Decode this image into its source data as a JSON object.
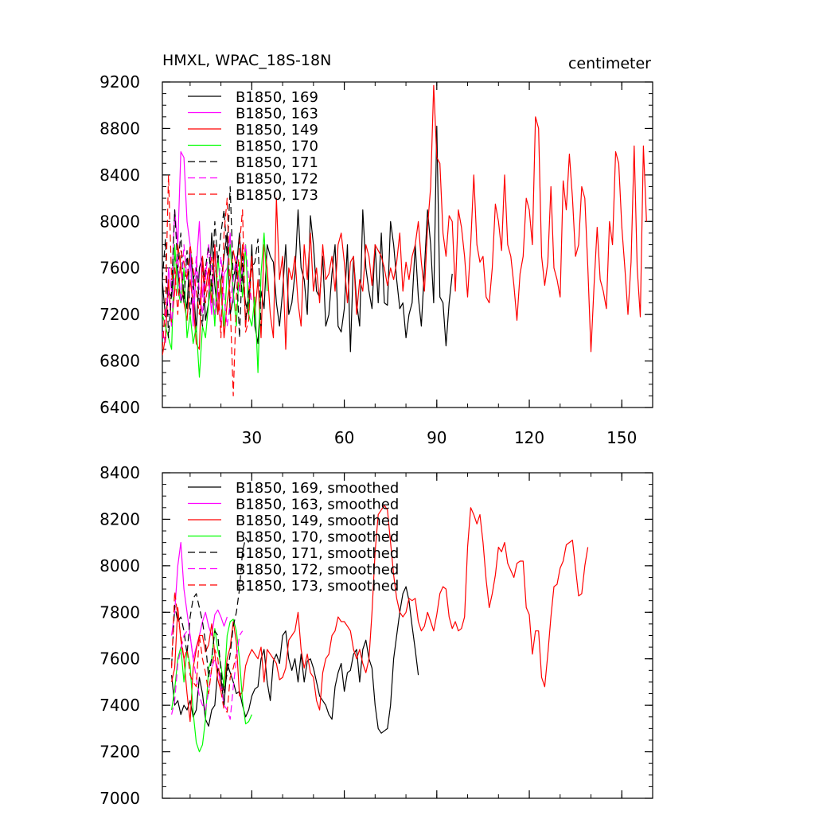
{
  "chart_data": [
    {
      "type": "line",
      "title": "HMXL, WPAC_18S-18N",
      "units": "centimeter",
      "xlim": [
        1,
        160
      ],
      "ylim": [
        6400,
        9200
      ],
      "x_ticks": [
        30,
        60,
        90,
        120,
        150
      ],
      "y_ticks": [
        6400,
        6800,
        7200,
        7600,
        8000,
        8400,
        8800,
        9200
      ],
      "x_tick_labels": [
        "30",
        "60",
        "90",
        "120",
        "150"
      ],
      "y_tick_labels": [
        "6400",
        "6800",
        "7200",
        "7600",
        "8000",
        "8400",
        "8800",
        "9200"
      ],
      "grid": false,
      "legend_position": "top-left",
      "series": [
        {
          "name": "B1850, 169",
          "color": "#000000",
          "dash": "solid",
          "x_start": 1,
          "values": [
            7480,
            7180,
            7400,
            7350,
            7700,
            7580,
            7300,
            7400,
            7250,
            7780,
            7500,
            7050,
            7600,
            7700,
            7150,
            7300,
            7900,
            7450,
            7200,
            7480,
            7700,
            7900,
            7200,
            7350,
            7600,
            7900,
            7500,
            7300,
            7200,
            7800,
            7100,
            6950,
            7400,
            7250,
            7800,
            7700,
            7650,
            7300,
            7100,
            7400,
            7800,
            7200,
            7300,
            7550,
            8100,
            7600,
            7500,
            7200,
            8050,
            7800,
            7400,
            7350,
            7700,
            7100,
            7200,
            7550,
            7800,
            7100,
            7050,
            7250,
            7800,
            6880,
            7700,
            7300,
            7100,
            8100,
            7600,
            7400,
            7250,
            7800,
            7300,
            7900,
            7300,
            7280,
            8000,
            7800,
            7500,
            7250,
            7300,
            7000,
            7200,
            7300,
            7800,
            7350,
            7100,
            7600,
            8100,
            7800,
            7300,
            8820,
            7350,
            7300,
            6930,
            7300,
            7550
          ]
        },
        {
          "name": "B1850, 163",
          "color": "#ff00ff",
          "dash": "solid",
          "x_start": 1,
          "values": [
            7050,
            6960,
            7600,
            7400,
            8100,
            7800,
            8600,
            8550,
            8000,
            7800,
            7100,
            7600,
            8000,
            7350,
            7600,
            7500,
            7200,
            7800,
            7400,
            7100,
            7550,
            7600,
            7900,
            7300
          ]
        },
        {
          "name": "B1850, 149",
          "color": "#ff0000",
          "dash": "solid",
          "x_start": 1,
          "values": [
            6850,
            7000,
            7500,
            7100,
            7400,
            7800,
            7600,
            7300,
            7150,
            7500,
            7300,
            6950,
            6900,
            7700,
            7400,
            7600,
            7300,
            7800,
            7200,
            7500,
            7000,
            7300,
            7500,
            7750,
            7600,
            7400,
            7800,
            7100,
            7400,
            7700,
            7200,
            7500,
            7000,
            7800,
            7600,
            7200,
            7000,
            8200,
            7500,
            7700,
            6900,
            7600,
            7500,
            7700,
            7300,
            7100,
            7800,
            7500,
            7900,
            7400,
            7600,
            7300,
            7800,
            7500,
            7550,
            7700,
            7400,
            7800,
            7900,
            7650,
            7300,
            7650,
            7700,
            7200,
            7500,
            7400,
            7800,
            7700,
            7450,
            7800,
            7750,
            7700,
            7600,
            7450,
            7600,
            7500,
            7650,
            7900,
            7400,
            7650,
            7500,
            7700,
            7800,
            8000,
            7650,
            7400,
            7950,
            8300,
            9170,
            8550,
            8500,
            7900,
            7700,
            8050,
            8000,
            7400,
            8100,
            7950,
            7700,
            7350,
            7800,
            8400,
            7800,
            7650,
            7700,
            7350,
            7300,
            7600,
            8150,
            8000,
            7750,
            8400,
            7800,
            7700,
            7450,
            7150,
            7550,
            7700,
            8200,
            8100,
            7800,
            8900,
            8800,
            7700,
            7450,
            7650,
            8300,
            7600,
            7500,
            7350,
            8350,
            8100,
            8580,
            8200,
            7700,
            7800,
            8300,
            8200,
            7600,
            6880,
            7450,
            7950,
            7500,
            7400,
            7250,
            8000,
            7800,
            8600,
            8500,
            7950,
            7600,
            7200,
            7650,
            8650,
            7600,
            7180,
            8650,
            8000
          ]
        },
        {
          "name": "B1850, 170",
          "color": "#00ff00",
          "dash": "solid",
          "x_start": 1,
          "values": [
            7200,
            7100,
            7000,
            6900,
            7800,
            7400,
            7300,
            7600,
            7000,
            7200,
            6950,
            7100,
            6660,
            7100,
            7000,
            7300,
            7500,
            7100,
            7700,
            7400,
            7100,
            7550,
            7800,
            7400,
            7100,
            7650,
            7350,
            7800,
            7200,
            7100,
            7350,
            6700,
            7550,
            7900,
            7400
          ]
        },
        {
          "name": "B1850, 171",
          "color": "#000000",
          "dash": "dashed",
          "x_start": 1,
          "values": [
            7500,
            7850,
            7000,
            7400,
            8100,
            7600,
            7900,
            7300,
            7750,
            7200,
            7500,
            7600,
            7300,
            7100,
            7600,
            7800,
            7400,
            8000,
            7650,
            7900,
            8100,
            7700,
            8300,
            7500,
            7650,
            7000,
            7700,
            7150,
            7400,
            7600,
            7650,
            7850,
            7100
          ]
        },
        {
          "name": "B1850, 172",
          "color": "#ff00ff",
          "dash": "dashed",
          "x_start": 1,
          "values": [
            7000,
            7200,
            7400,
            7100,
            7600,
            7700,
            7300,
            7800,
            7500,
            7650,
            7300,
            7700,
            7400,
            7200,
            7500,
            7800,
            7600,
            7200,
            7400,
            7700,
            7350,
            7100,
            7300,
            7500,
            7700,
            7400,
            7600,
            7800,
            7500,
            7300
          ]
        },
        {
          "name": "B1850, 173",
          "color": "#ff0000",
          "dash": "dashed",
          "x_start": 1,
          "values": [
            6900,
            7300,
            8400,
            7500,
            7600,
            7200,
            7750,
            7650,
            7500,
            7800,
            7600,
            7400,
            7200,
            7600,
            7300,
            7500,
            7700,
            7600,
            7500,
            7000,
            7900,
            8200,
            7300,
            6500,
            7350,
            7800,
            8100,
            7050,
            7150,
            7700
          ]
        }
      ]
    },
    {
      "type": "line",
      "title": "",
      "xlim": [
        1,
        160
      ],
      "ylim": [
        7000,
        8400
      ],
      "x_ticks": [
        30,
        60,
        90,
        120,
        150
      ],
      "y_ticks": [
        7000,
        7200,
        7400,
        7600,
        7800,
        8000,
        8200,
        8400
      ],
      "x_tick_labels": [],
      "y_tick_labels": [
        "7000",
        "7200",
        "7400",
        "7600",
        "7800",
        "8000",
        "8200",
        "8400"
      ],
      "grid": false,
      "legend_position": "top-left",
      "series": [
        {
          "name": "B1850, 169, smoothed",
          "color": "#000000",
          "dash": "solid",
          "x_start": 4,
          "values": [
            7530,
            7400,
            7420,
            7360,
            7400,
            7380,
            7420,
            7350,
            7380,
            7520,
            7450,
            7340,
            7310,
            7380,
            7400,
            7560,
            7520,
            7400,
            7580,
            7540,
            7500,
            7450,
            7460,
            7400,
            7350,
            7380,
            7440,
            7470,
            7480,
            7600,
            7640,
            7500,
            7420,
            7590,
            7620,
            7580,
            7700,
            7720,
            7600,
            7550,
            7600,
            7500,
            7620,
            7500,
            7590,
            7600,
            7560,
            7500,
            7440,
            7420,
            7400,
            7360,
            7340,
            7480,
            7540,
            7580,
            7460,
            7540,
            7550,
            7620,
            7640,
            7500,
            7640,
            7680,
            7600,
            7560,
            7400,
            7300,
            7280,
            7290,
            7300,
            7400,
            7600,
            7700,
            7800,
            7880,
            7910,
            7850,
            7740,
            7640,
            7530
          ]
        },
        {
          "name": "B1850, 163, smoothed",
          "color": "#ff00ff",
          "dash": "solid",
          "x_start": 4,
          "values": [
            7700,
            7800,
            8000,
            8100,
            7900,
            7800,
            7700,
            7600,
            7650,
            7700,
            7760,
            7800,
            7740,
            7700,
            7790,
            7810,
            7780,
            7740,
            7780
          ]
        },
        {
          "name": "B1850, 149, smoothed",
          "color": "#ff0000",
          "dash": "solid",
          "x_start": 4,
          "values": [
            7500,
            7560,
            7820,
            7680,
            7600,
            7450,
            7330,
            7560,
            7640,
            7700,
            7700,
            7630,
            7660,
            7750,
            7620,
            7510,
            7460,
            7480,
            7600,
            7650,
            7760,
            7670,
            7440,
            7460,
            7570,
            7610,
            7640,
            7620,
            7600,
            7650,
            7500,
            7640,
            7620,
            7600,
            7580,
            7510,
            7520,
            7560,
            7680,
            7700,
            7720,
            7800,
            7640,
            7560,
            7620,
            7540,
            7520,
            7420,
            7380,
            7540,
            7600,
            7620,
            7700,
            7720,
            7780,
            7760,
            7760,
            7740,
            7720,
            7640,
            7600,
            7640,
            7580,
            7540,
            7600,
            7800,
            8060,
            8220,
            8240,
            8260,
            8240,
            8100,
            7960,
            7860,
            7800,
            7780,
            7800,
            7860,
            7850,
            7860,
            7760,
            7720,
            7740,
            7800,
            7760,
            7720,
            7790,
            7880,
            7910,
            7900,
            7780,
            7730,
            7760,
            7720,
            7730,
            7780,
            8080,
            8250,
            8220,
            8180,
            8220,
            8100,
            7940,
            7820,
            7880,
            7960,
            8080,
            8060,
            8100,
            8010,
            7980,
            7950,
            8010,
            8020,
            8020,
            7820,
            7790,
            7620,
            7720,
            7720,
            7520,
            7480,
            7620,
            7780,
            7910,
            7920,
            7990,
            8020,
            8090,
            8100,
            8110,
            7990,
            7870,
            7880,
            8000,
            8080
          ]
        },
        {
          "name": "B1850, 170, smoothed",
          "color": "#00ff00",
          "dash": "solid",
          "x_start": 4,
          "values": [
            7380,
            7470,
            7600,
            7650,
            7500,
            7640,
            7570,
            7370,
            7240,
            7200,
            7230,
            7340,
            7560,
            7600,
            7730,
            7640,
            7570,
            7480,
            7700,
            7760,
            7770,
            7720,
            7600,
            7420,
            7320,
            7330,
            7360
          ]
        },
        {
          "name": "B1850, 171, smoothed",
          "color": "#000000",
          "dash": "dashed",
          "x_start": 4,
          "values": [
            7570,
            7830,
            7760,
            7780,
            7720,
            7620,
            7780,
            7860,
            7880,
            7820,
            7760,
            7670,
            7520,
            7600,
            7720,
            7700,
            7550,
            7450,
            7540,
            7620,
            7740,
            7800,
            7900,
            8060,
            8120,
            8100
          ]
        },
        {
          "name": "B1850, 172, smoothed",
          "color": "#ff00ff",
          "dash": "dashed",
          "x_start": 4,
          "values": [
            7360,
            7420,
            7580,
            7640,
            7700,
            7720,
            7700,
            7600,
            7520,
            7440,
            7400,
            7380,
            7460,
            7560,
            7600,
            7560,
            7480,
            7400,
            7380,
            7340,
            7480,
            7600,
            7700,
            7720
          ]
        },
        {
          "name": "B1850, 173, smoothed",
          "color": "#ff0000",
          "dash": "dashed",
          "x_start": 4,
          "values": [
            7560,
            7890,
            7780,
            7700,
            7600,
            7640,
            7530,
            7500,
            7480,
            7700,
            7600,
            7540,
            7450,
            7560,
            7640,
            7600,
            7460,
            7380,
            7370,
            7520,
            7560,
            7620
          ]
        }
      ]
    }
  ]
}
